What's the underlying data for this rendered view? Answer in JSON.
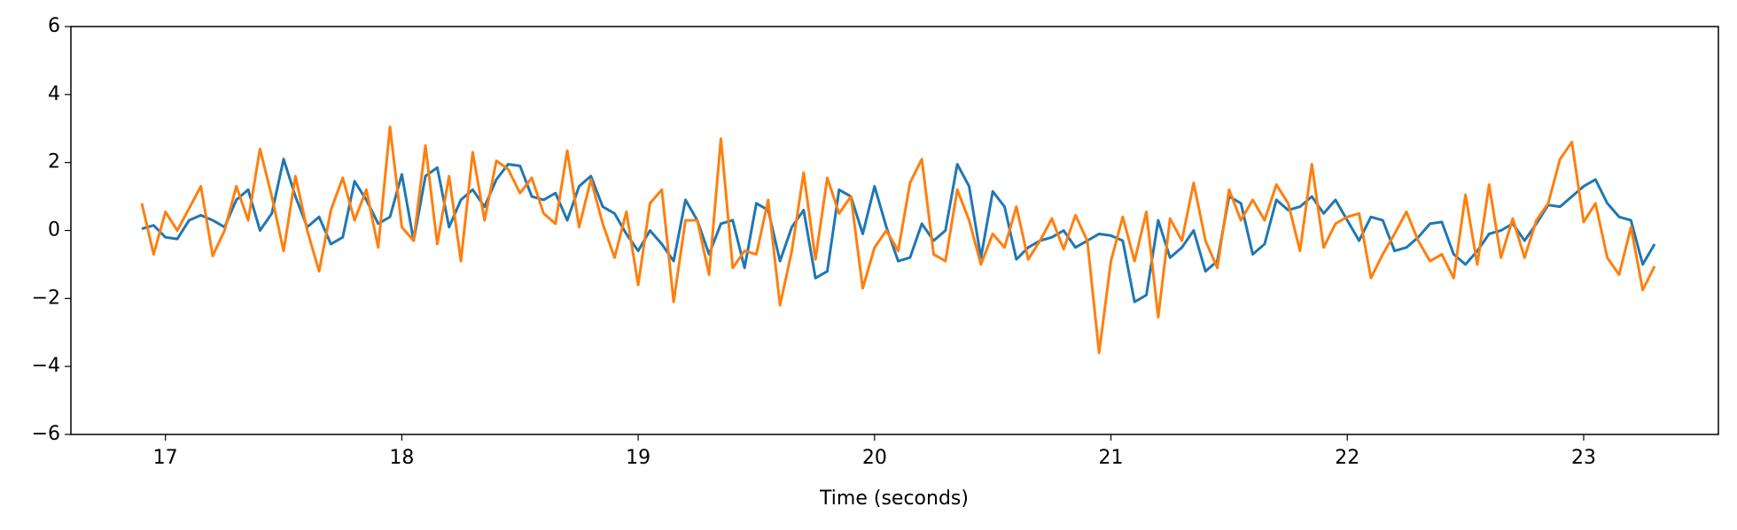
{
  "chart_data": {
    "type": "line",
    "xlabel": "Time (seconds)",
    "x": [
      16.9,
      16.95,
      17.0,
      17.05,
      17.1,
      17.15,
      17.2,
      17.25,
      17.3,
      17.35,
      17.4,
      17.45,
      17.5,
      17.55,
      17.6,
      17.65,
      17.7,
      17.75,
      17.8,
      17.85,
      17.9,
      17.95,
      18.0,
      18.05,
      18.1,
      18.15,
      18.2,
      18.25,
      18.3,
      18.35,
      18.4,
      18.45,
      18.5,
      18.55,
      18.6,
      18.65,
      18.7,
      18.75,
      18.8,
      18.85,
      18.9,
      18.95,
      19.0,
      19.05,
      19.1,
      19.15,
      19.2,
      19.25,
      19.3,
      19.35,
      19.4,
      19.45,
      19.5,
      19.55,
      19.6,
      19.65,
      19.7,
      19.75,
      19.8,
      19.85,
      19.9,
      19.95,
      20.0,
      20.05,
      20.1,
      20.15,
      20.2,
      20.25,
      20.3,
      20.35,
      20.4,
      20.45,
      20.5,
      20.55,
      20.6,
      20.65,
      20.7,
      20.75,
      20.8,
      20.85,
      20.9,
      20.95,
      21.0,
      21.05,
      21.1,
      21.15,
      21.2,
      21.25,
      21.3,
      21.35,
      21.4,
      21.45,
      21.5,
      21.55,
      21.6,
      21.65,
      21.7,
      21.75,
      21.8,
      21.85,
      21.9,
      21.95,
      22.0,
      22.05,
      22.1,
      22.15,
      22.2,
      22.25,
      22.3,
      22.35,
      22.4,
      22.45,
      22.5,
      22.55,
      22.6,
      22.65,
      22.7,
      22.75,
      22.8,
      22.85,
      22.9,
      22.95,
      23.0,
      23.05,
      23.1,
      23.15,
      23.2,
      23.25,
      23.3
    ],
    "series": [
      {
        "color": "#1f77b4",
        "values": [
          0.05,
          0.15,
          -0.2,
          -0.25,
          0.3,
          0.45,
          0.3,
          0.1,
          0.9,
          1.2,
          0.0,
          0.5,
          2.1,
          1.0,
          0.1,
          0.4,
          -0.4,
          -0.2,
          1.45,
          0.9,
          0.2,
          0.4,
          1.65,
          -0.3,
          1.6,
          1.85,
          0.1,
          0.9,
          1.2,
          0.7,
          1.5,
          1.95,
          1.9,
          1.0,
          0.9,
          1.1,
          0.3,
          1.3,
          1.6,
          0.7,
          0.5,
          -0.1,
          -0.6,
          0.0,
          -0.4,
          -0.9,
          0.9,
          0.3,
          -0.7,
          0.2,
          0.3,
          -1.1,
          0.8,
          0.6,
          -0.9,
          0.1,
          0.6,
          -1.4,
          -1.2,
          1.2,
          1.0,
          -0.1,
          1.3,
          0.1,
          -0.9,
          -0.8,
          0.2,
          -0.3,
          0.0,
          1.95,
          1.3,
          -0.8,
          1.15,
          0.7,
          -0.85,
          -0.5,
          -0.3,
          -0.2,
          0.0,
          -0.5,
          -0.3,
          -0.1,
          -0.15,
          -0.3,
          -2.1,
          -1.9,
          0.3,
          -0.8,
          -0.5,
          0.0,
          -1.2,
          -0.9,
          1.0,
          0.8,
          -0.7,
          -0.4,
          0.9,
          0.6,
          0.7,
          1.0,
          0.5,
          0.9,
          0.3,
          -0.3,
          0.4,
          0.3,
          -0.6,
          -0.5,
          -0.2,
          0.2,
          0.25,
          -0.7,
          -1.0,
          -0.6,
          -0.1,
          0.0,
          0.2,
          -0.3,
          0.2,
          0.75,
          0.7,
          1.0,
          1.3,
          1.5,
          0.8,
          0.4,
          0.3,
          -1.0,
          -0.4
        ]
      },
      {
        "color": "#ff7f0e",
        "values": [
          0.8,
          -0.7,
          0.55,
          0.0,
          0.65,
          1.3,
          -0.75,
          0.0,
          1.3,
          0.3,
          2.4,
          1.0,
          -0.6,
          1.6,
          0.0,
          -1.2,
          0.6,
          1.55,
          0.3,
          1.2,
          -0.5,
          3.05,
          0.1,
          -0.3,
          2.5,
          -0.4,
          1.6,
          -0.9,
          2.3,
          0.3,
          2.05,
          1.8,
          1.1,
          1.55,
          0.5,
          0.2,
          2.35,
          0.1,
          1.5,
          0.2,
          -0.8,
          0.55,
          -1.6,
          0.8,
          1.2,
          -2.1,
          0.3,
          0.3,
          -1.3,
          2.7,
          -1.1,
          -0.6,
          -0.7,
          0.9,
          -2.2,
          -0.6,
          1.7,
          -0.85,
          1.55,
          0.5,
          1.0,
          -1.7,
          -0.5,
          0.0,
          -0.6,
          1.4,
          2.1,
          -0.7,
          -0.9,
          1.2,
          0.3,
          -1.0,
          -0.1,
          -0.5,
          0.7,
          -0.85,
          -0.3,
          0.35,
          -0.55,
          0.45,
          -0.3,
          -3.6,
          -0.9,
          0.4,
          -0.9,
          0.55,
          -2.55,
          0.35,
          -0.3,
          1.4,
          -0.3,
          -1.1,
          1.2,
          0.3,
          0.9,
          0.3,
          1.35,
          0.8,
          -0.6,
          1.95,
          -0.5,
          0.2,
          0.4,
          0.5,
          -1.4,
          -0.7,
          -0.1,
          0.55,
          -0.3,
          -0.9,
          -0.7,
          -1.4,
          1.05,
          -1.0,
          1.35,
          -0.8,
          0.35,
          -0.8,
          0.3,
          0.8,
          2.1,
          2.6,
          0.25,
          0.8,
          -0.8,
          -1.3,
          0.1,
          -1.75,
          -1.05
        ]
      }
    ],
    "xlim": [
      16.6,
      23.57
    ],
    "ylim": [
      -6,
      6
    ],
    "xticks": [
      17,
      18,
      19,
      20,
      21,
      22,
      23
    ],
    "yticks": [
      {
        "value": -6,
        "label": "−6"
      },
      {
        "value": -4,
        "label": "−4"
      },
      {
        "value": -2,
        "label": "−2"
      },
      0,
      2,
      4,
      6
    ],
    "grid": false
  }
}
